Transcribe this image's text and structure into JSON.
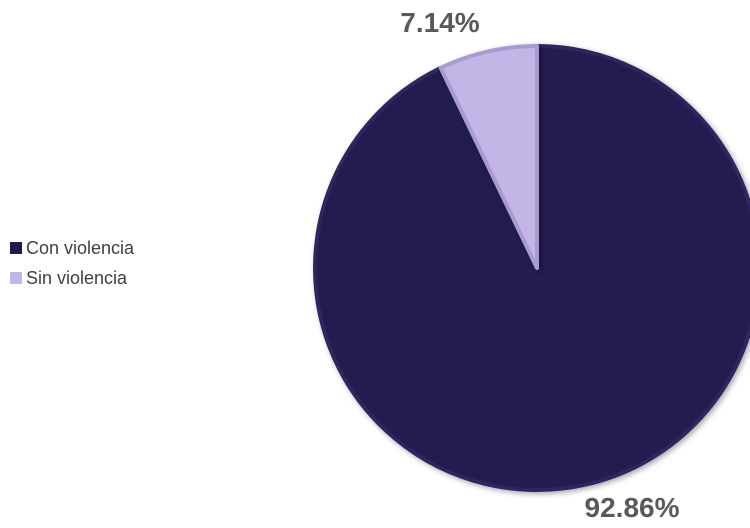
{
  "chart_data": {
    "type": "pie",
    "categories": [
      "Con violencia",
      "Sin violencia"
    ],
    "values": [
      92.86,
      7.14
    ],
    "data_labels": [
      "92.86%",
      "7.14%"
    ],
    "colors": [
      "#221a4f",
      "#c3b6e6"
    ],
    "start_angle_deg": 0,
    "direction": "clockwise",
    "legend_position": "left",
    "title": ""
  }
}
